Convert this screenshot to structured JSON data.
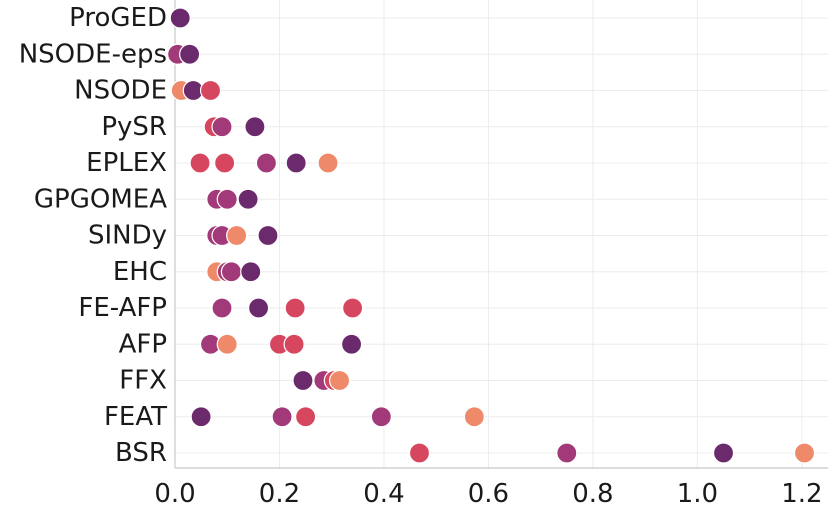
{
  "chart_data": {
    "type": "scatter",
    "title": "",
    "xlabel": "",
    "ylabel": "",
    "xlim": [
      0,
      1.25
    ],
    "x_ticks": [
      0.0,
      0.2,
      0.4,
      0.6,
      0.8,
      1.0,
      1.2
    ],
    "x_tick_labels": [
      "0.0",
      "0.2",
      "0.4",
      "0.6",
      "0.8",
      "1.0",
      "1.2"
    ],
    "grid": true,
    "palette": [
      "#6b2a6b",
      "#a23a7a",
      "#d6465e",
      "#ee8a6a"
    ],
    "categories": [
      "ProGED",
      "NSODE-eps",
      "NSODE",
      "PySR",
      "EPLEX",
      "GPGOMEA",
      "SINDy",
      "EHC",
      "FE-AFP",
      "AFP",
      "FFX",
      "FEAT",
      "BSR"
    ],
    "points": [
      {
        "category": "ProGED",
        "x": 0.01,
        "color": "#6b2a6b"
      },
      {
        "category": "NSODE-eps",
        "x": 0.005,
        "color": "#a23a7a"
      },
      {
        "category": "NSODE-eps",
        "x": 0.028,
        "color": "#6b2a6b"
      },
      {
        "category": "NSODE",
        "x": 0.012,
        "color": "#ee8a6a"
      },
      {
        "category": "NSODE",
        "x": 0.035,
        "color": "#6b2a6b"
      },
      {
        "category": "NSODE",
        "x": 0.068,
        "color": "#d6465e"
      },
      {
        "category": "PySR",
        "x": 0.075,
        "color": "#d6465e"
      },
      {
        "category": "PySR",
        "x": 0.09,
        "color": "#a23a7a"
      },
      {
        "category": "PySR",
        "x": 0.153,
        "color": "#6b2a6b"
      },
      {
        "category": "EPLEX",
        "x": 0.048,
        "color": "#d6465e"
      },
      {
        "category": "EPLEX",
        "x": 0.095,
        "color": "#d6465e"
      },
      {
        "category": "EPLEX",
        "x": 0.175,
        "color": "#a23a7a"
      },
      {
        "category": "EPLEX",
        "x": 0.232,
        "color": "#6b2a6b"
      },
      {
        "category": "EPLEX",
        "x": 0.293,
        "color": "#ee8a6a"
      },
      {
        "category": "GPGOMEA",
        "x": 0.08,
        "color": "#a23a7a"
      },
      {
        "category": "GPGOMEA",
        "x": 0.1,
        "color": "#a23a7a"
      },
      {
        "category": "GPGOMEA",
        "x": 0.14,
        "color": "#6b2a6b"
      },
      {
        "category": "SINDy",
        "x": 0.08,
        "color": "#a23a7a"
      },
      {
        "category": "SINDy",
        "x": 0.09,
        "color": "#a23a7a"
      },
      {
        "category": "SINDy",
        "x": 0.118,
        "color": "#ee8a6a"
      },
      {
        "category": "SINDy",
        "x": 0.178,
        "color": "#6b2a6b"
      },
      {
        "category": "EHC",
        "x": 0.08,
        "color": "#ee8a6a"
      },
      {
        "category": "EHC",
        "x": 0.1,
        "color": "#a23a7a"
      },
      {
        "category": "EHC",
        "x": 0.108,
        "color": "#a23a7a"
      },
      {
        "category": "EHC",
        "x": 0.145,
        "color": "#6b2a6b"
      },
      {
        "category": "FE-AFP",
        "x": 0.09,
        "color": "#a23a7a"
      },
      {
        "category": "FE-AFP",
        "x": 0.16,
        "color": "#6b2a6b"
      },
      {
        "category": "FE-AFP",
        "x": 0.23,
        "color": "#d6465e"
      },
      {
        "category": "FE-AFP",
        "x": 0.34,
        "color": "#d6465e"
      },
      {
        "category": "AFP",
        "x": 0.068,
        "color": "#a23a7a"
      },
      {
        "category": "AFP",
        "x": 0.1,
        "color": "#ee8a6a"
      },
      {
        "category": "AFP",
        "x": 0.2,
        "color": "#d6465e"
      },
      {
        "category": "AFP",
        "x": 0.228,
        "color": "#d6465e"
      },
      {
        "category": "AFP",
        "x": 0.338,
        "color": "#6b2a6b"
      },
      {
        "category": "FFX",
        "x": 0.245,
        "color": "#6b2a6b"
      },
      {
        "category": "FFX",
        "x": 0.285,
        "color": "#a23a7a"
      },
      {
        "category": "FFX",
        "x": 0.305,
        "color": "#d6465e"
      },
      {
        "category": "FFX",
        "x": 0.315,
        "color": "#ee8a6a"
      },
      {
        "category": "FEAT",
        "x": 0.05,
        "color": "#6b2a6b"
      },
      {
        "category": "FEAT",
        "x": 0.205,
        "color": "#a23a7a"
      },
      {
        "category": "FEAT",
        "x": 0.25,
        "color": "#d6465e"
      },
      {
        "category": "FEAT",
        "x": 0.395,
        "color": "#a23a7a"
      },
      {
        "category": "FEAT",
        "x": 0.573,
        "color": "#ee8a6a"
      },
      {
        "category": "BSR",
        "x": 0.468,
        "color": "#d6465e"
      },
      {
        "category": "BSR",
        "x": 0.75,
        "color": "#a23a7a"
      },
      {
        "category": "BSR",
        "x": 1.05,
        "color": "#6b2a6b"
      },
      {
        "category": "BSR",
        "x": 1.205,
        "color": "#ee8a6a"
      }
    ]
  }
}
